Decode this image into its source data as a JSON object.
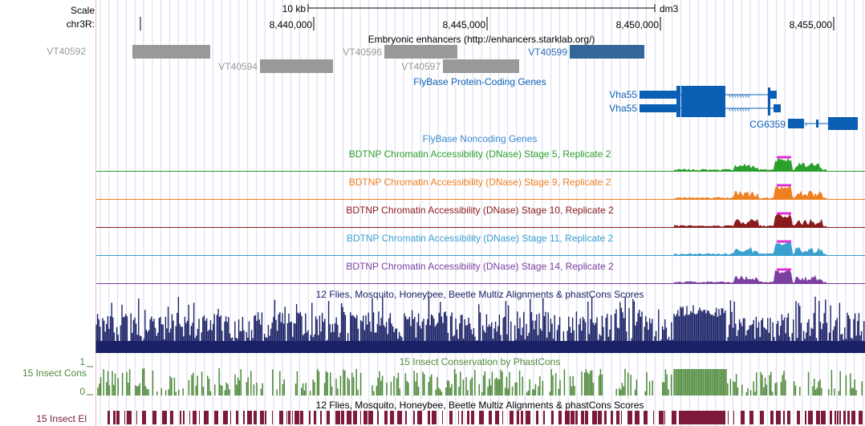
{
  "side_labels": {
    "scale": "Scale",
    "chrom": "chr3R:",
    "cons_track": "15 Insect Cons",
    "cons_max": "1",
    "cons_min": "0",
    "elements_track": "15 Insect El"
  },
  "ruler": {
    "scale_text": "10 kb",
    "assembly": "dm3",
    "positions": [
      "8,440,000",
      "8,445,000",
      "8,450,000",
      "8,455,000"
    ]
  },
  "tracks": {
    "enhancers": {
      "title": "Embryonic enhancers (http://enhancers.starklab.org/)",
      "items": [
        "VT40592",
        "VT40594",
        "VT40596",
        "VT40597",
        "VT40599"
      ]
    },
    "protein_coding": {
      "title": "FlyBase Protein-Coding Genes",
      "genes": [
        "Vha55",
        "Vha55",
        "CG6359"
      ]
    },
    "noncoding": {
      "title": "FlyBase Noncoding Genes"
    },
    "dnase": [
      {
        "title": "BDTNP Chromatin Accessibility (DNase) Stage 5, Replicate 2",
        "color": "#2ca02c"
      },
      {
        "title": "BDTNP Chromatin Accessibility (DNase) Stage 9, Replicate 2",
        "color": "#f07f1f"
      },
      {
        "title": "BDTNP Chromatin Accessibility (DNase) Stage 10, Replicate 2",
        "color": "#8b1a1a"
      },
      {
        "title": "BDTNP Chromatin Accessibility (DNase) Stage 11, Replicate 2",
        "color": "#3aa0d0"
      },
      {
        "title": "BDTNP Chromatin Accessibility (DNase) Stage 14, Replicate 2",
        "color": "#7b3fa0"
      }
    ],
    "multiz": {
      "title": "12 Flies, Mosquito, Honeybee, Beetle Multiz Alignments & phastCons Scores"
    },
    "phastcons": {
      "title": "15 Insect Conservation by PhastCons"
    },
    "elements": {
      "title": "12 Flies, Mosquito, Honeybee, Beetle Multiz Alignments & phastCons Scores"
    }
  },
  "colors": {
    "enhancer_gray": "#999999",
    "enhancer_blue": "#336699",
    "gene_blue": "#0a5fb4",
    "multiz_navy": "#1a2166",
    "phastcons_green": "#4e8a3a",
    "elements_maroon": "#7d1a3a",
    "grid": "#d8d8f2"
  }
}
